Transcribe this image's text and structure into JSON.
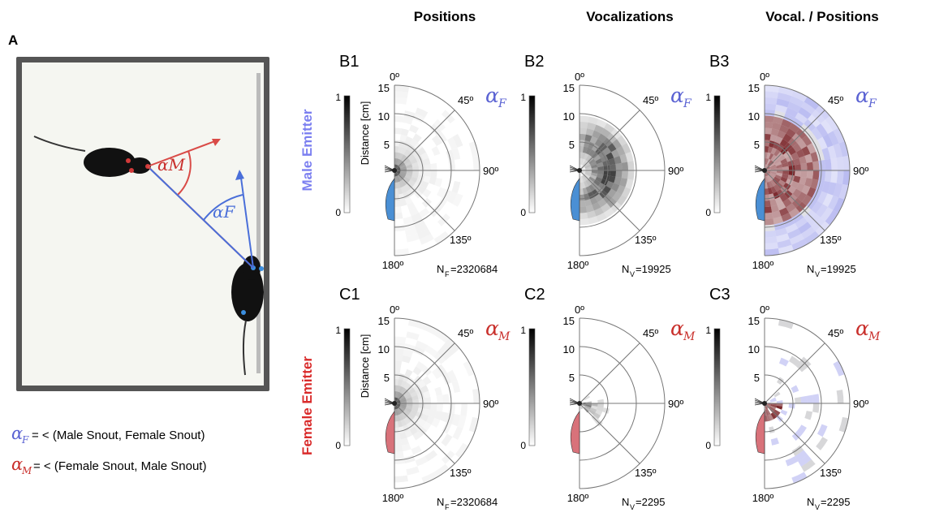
{
  "panel_a": {
    "label": "A",
    "image_alpha_m": "αM",
    "image_alpha_f": "αF",
    "legend": [
      {
        "symbol": "α",
        "sub": "F",
        "text": "= < (Male Snout, Female Snout)",
        "color": "#5b63d3"
      },
      {
        "symbol": "α",
        "sub": "M",
        "text": "= < (Female Snout, Male Snout)",
        "color": "#c9302c"
      }
    ]
  },
  "columns": [
    "Positions",
    "Vocalizations",
    "Vocal. / Positions"
  ],
  "rows": [
    {
      "label": "Male Emitter",
      "color": "#7b7ff0"
    },
    {
      "label": "Female Emitter",
      "color": "#d92b2b"
    }
  ],
  "polar": {
    "angle_labels": [
      "0º",
      "45º",
      "90º",
      "135º",
      "180º"
    ],
    "radial_ticks": [
      "15",
      "10",
      "5"
    ],
    "radial_axis_label": "Distance [cm]",
    "colorbar_ticks": [
      "1",
      "0"
    ]
  },
  "panels": [
    {
      "id": "B1",
      "alpha_base": "α",
      "alpha_sub": "F",
      "alpha_color": "#5b63d3",
      "count_prefix": "N",
      "count_sub": "F",
      "count_value": "=2320684",
      "body_color": "#4a8fd4",
      "type": "positions"
    },
    {
      "id": "B2",
      "alpha_base": "α",
      "alpha_sub": "F",
      "alpha_color": "#5b63d3",
      "count_prefix": "N",
      "count_sub": "V",
      "count_value": "=19925",
      "body_color": "#4a8fd4",
      "type": "vocal"
    },
    {
      "id": "B3",
      "alpha_base": "α",
      "alpha_sub": "F",
      "alpha_color": "#5b63d3",
      "count_prefix": "N",
      "count_sub": "V",
      "count_value": "=19925",
      "body_color": "#4a8fd4",
      "type": "ratio"
    },
    {
      "id": "C1",
      "alpha_base": "α",
      "alpha_sub": "M",
      "alpha_color": "#c9302c",
      "count_prefix": "N",
      "count_sub": "F",
      "count_value": "=2320684",
      "body_color": "#d8727a",
      "type": "positions"
    },
    {
      "id": "C2",
      "alpha_base": "α",
      "alpha_sub": "M",
      "alpha_color": "#c9302c",
      "count_prefix": "N",
      "count_sub": "V",
      "count_value": "=2295",
      "body_color": "#d8727a",
      "type": "vocal_sparse"
    },
    {
      "id": "C3",
      "alpha_base": "α",
      "alpha_sub": "M",
      "alpha_color": "#c9302c",
      "count_prefix": "N",
      "count_sub": "V",
      "count_value": "=2295",
      "body_color": "#d8727a",
      "type": "ratio_sparse"
    }
  ]
}
